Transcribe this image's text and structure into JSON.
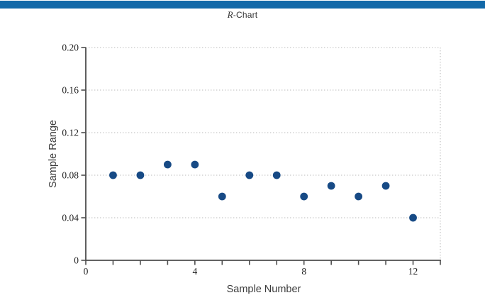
{
  "header": {
    "bar_color": "#1268a8",
    "title_r": "R",
    "title_rest": "-Chart"
  },
  "chart_data": {
    "type": "scatter",
    "title": "R-Chart",
    "xlabel": "Sample Number",
    "ylabel": "Sample Range",
    "x": [
      1,
      2,
      3,
      4,
      5,
      6,
      7,
      8,
      9,
      10,
      11,
      12
    ],
    "values": [
      0.08,
      0.08,
      0.09,
      0.09,
      0.06,
      0.08,
      0.08,
      0.06,
      0.07,
      0.06,
      0.07,
      0.04
    ],
    "xlim": [
      0,
      13
    ],
    "ylim": [
      0,
      0.2
    ],
    "x_tick_step": 1,
    "x_label_ticks": [
      0,
      4,
      8,
      12
    ],
    "x_label_texts": [
      "0",
      "4",
      "8",
      "12"
    ],
    "y_ticks": [
      0,
      0.04,
      0.08,
      0.12,
      0.16,
      0.2
    ],
    "y_tick_labels": [
      "0",
      "0.04",
      "0.08",
      "0.12",
      "0.16",
      "0.20"
    ],
    "grid": "horizontal dotted gridlines at y ticks, dotted right border, dotted top border",
    "legend": "none",
    "marker": {
      "shape": "circle",
      "color": "#174a85"
    },
    "axis_color": "#4d4d4d",
    "grid_color": "#c6c6c6"
  }
}
